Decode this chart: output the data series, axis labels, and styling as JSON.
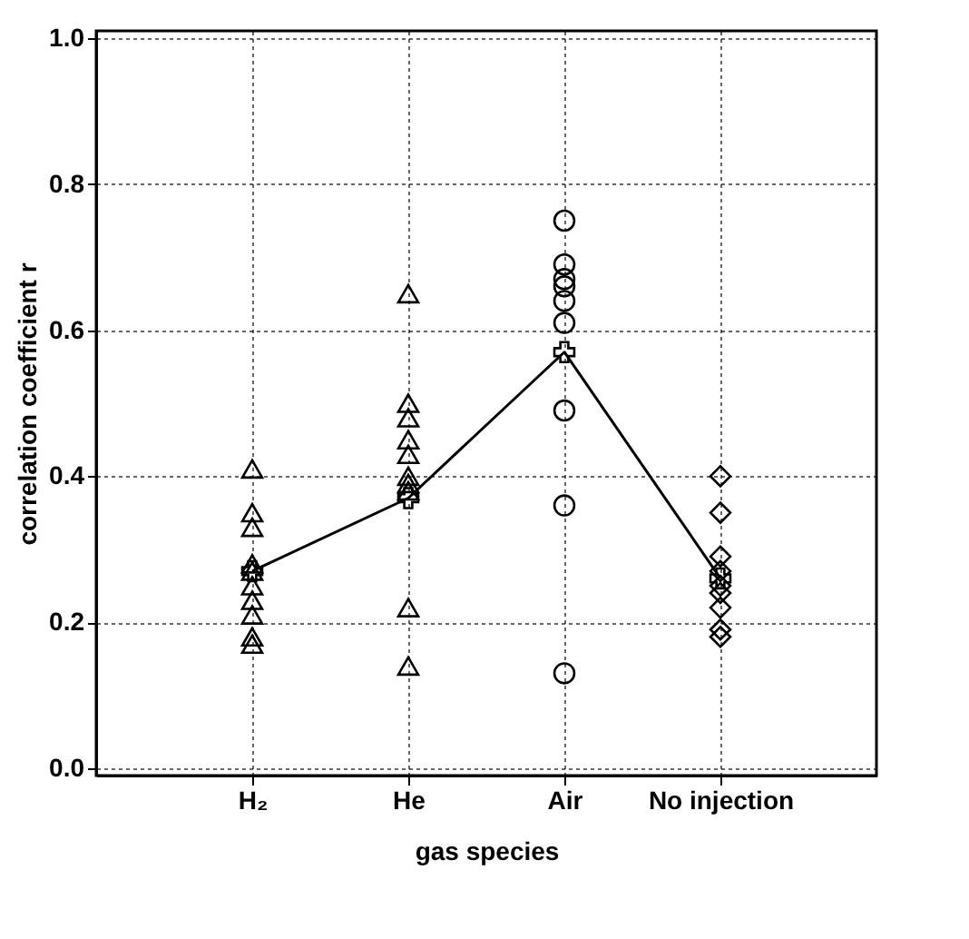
{
  "chart_data": {
    "type": "scatter",
    "xlabel": "gas species",
    "ylabel": "correlation coefficient r",
    "categories": [
      "H₂",
      "He",
      "Air",
      "No injection"
    ],
    "series": [
      {
        "marker": "triangle",
        "color": "#000000",
        "x": [
          "H₂",
          "H₂",
          "H₂",
          "H₂",
          "H₂",
          "H₂",
          "H₂",
          "H₂",
          "H₂",
          "H₂"
        ],
        "values": [
          0.41,
          0.35,
          0.33,
          0.28,
          0.27,
          0.25,
          0.23,
          0.21,
          0.18,
          0.17
        ]
      },
      {
        "marker": "triangle",
        "color": "#000000",
        "x": [
          "He",
          "He",
          "He",
          "He",
          "He",
          "He",
          "He",
          "He",
          "He",
          "He"
        ],
        "values": [
          0.65,
          0.5,
          0.48,
          0.45,
          0.43,
          0.4,
          0.39,
          0.38,
          0.22,
          0.14
        ]
      },
      {
        "marker": "circle",
        "color": "#000000",
        "x": [
          "Air",
          "Air",
          "Air",
          "Air",
          "Air",
          "Air",
          "Air",
          "Air",
          "Air"
        ],
        "values": [
          0.75,
          0.69,
          0.67,
          0.66,
          0.64,
          0.61,
          0.49,
          0.36,
          0.13
        ]
      },
      {
        "marker": "diamond",
        "color": "#000000",
        "x": [
          "No injection",
          "No injection",
          "No injection",
          "No injection",
          "No injection",
          "No injection",
          "No injection",
          "No injection",
          "No injection"
        ],
        "values": [
          0.4,
          0.35,
          0.29,
          0.27,
          0.25,
          0.24,
          0.22,
          0.19,
          0.18
        ]
      },
      {
        "type": "line",
        "marker": "cross",
        "line_style": "solid",
        "color": "#000000",
        "x": [
          "H₂",
          "He",
          "Air",
          "No injection"
        ],
        "values": [
          0.27,
          0.37,
          0.57,
          0.26
        ]
      }
    ],
    "ylim": [
      -0.01,
      1.01
    ],
    "yticks": [
      {
        "value": 0,
        "label": "0.0"
      },
      0.2,
      0.4,
      0.6,
      0.8,
      {
        "value": 1,
        "label": "1.0"
      }
    ],
    "grid": true
  }
}
